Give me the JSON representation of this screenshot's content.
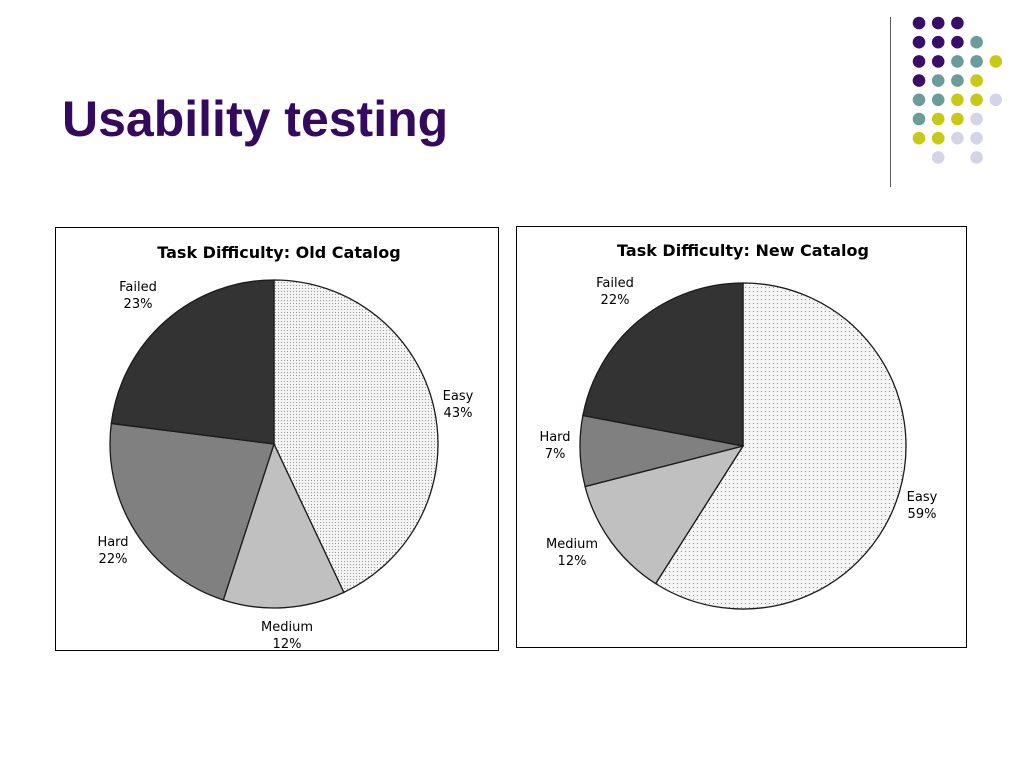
{
  "slide": {
    "title": "Usability testing"
  },
  "decor": {
    "dot_colors": {
      "purple": "#3b0d6b",
      "teal": "#6b9c9c",
      "yellow": "#c8c818",
      "lavender": "#d4d4e8"
    },
    "divider_color": "#5a5a5a"
  },
  "chart_data": [
    {
      "type": "pie",
      "title": "Task Difficulty: Old Catalog",
      "slices": [
        {
          "label": "Easy",
          "value": 43,
          "value_label": "43%",
          "color": "#f2f2f2",
          "pattern": "fine-dots"
        },
        {
          "label": "Medium",
          "value": 12,
          "value_label": "12%",
          "color": "#c0c0c0"
        },
        {
          "label": "Hard",
          "value": 22,
          "value_label": "22%",
          "color": "#808080"
        },
        {
          "label": "Failed",
          "value": 23,
          "value_label": "23%",
          "color": "#333333"
        }
      ],
      "start": "12 o'clock",
      "direction": "clockwise",
      "legend": "none"
    },
    {
      "type": "pie",
      "title": "Task Difficulty: New Catalog",
      "slices": [
        {
          "label": "Easy",
          "value": 59,
          "value_label": "59%",
          "color": "#f2f2f2",
          "pattern": "dots"
        },
        {
          "label": "Medium",
          "value": 12,
          "value_label": "12%",
          "color": "#c0c0c0"
        },
        {
          "label": "Hard",
          "value": 7,
          "value_label": "7%",
          "color": "#808080"
        },
        {
          "label": "Failed",
          "value": 22,
          "value_label": "22%",
          "color": "#333333"
        }
      ],
      "start": "12 o'clock",
      "direction": "clockwise",
      "legend": "none"
    }
  ]
}
